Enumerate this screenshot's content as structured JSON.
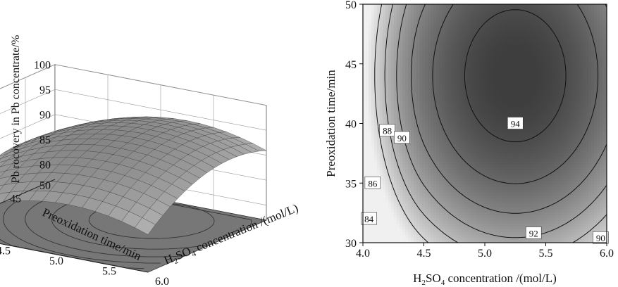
{
  "chart_data": [
    {
      "type": "surface",
      "title": "",
      "zlabel": "Pb rocovery in Pb concentrate/%",
      "ylabel": "Preoxidation time/min",
      "xlabel_parts": [
        "H",
        "2",
        "SO",
        "4",
        " concentration /(mol/L)"
      ],
      "x_ticks": [
        "4.0",
        "4.5",
        "5.0",
        "5.5",
        "6.0"
      ],
      "y_ticks": [
        "50",
        "45",
        "40",
        "35",
        "30"
      ],
      "z_ticks": [
        "100",
        "95",
        "90",
        "85",
        "80"
      ],
      "xlim": [
        4.0,
        6.0
      ],
      "ylim": [
        30,
        50
      ],
      "zlim": [
        77,
        100
      ],
      "grid": true,
      "surface_peak": {
        "x": 5.25,
        "y": 44,
        "z": 95.3
      },
      "colors": {
        "surface_light": "#f2f2f2",
        "surface_dark": "#7a7a7a",
        "floor": "#777777",
        "mesh": "#3a3a3a"
      }
    },
    {
      "type": "contour",
      "title": "",
      "xlabel_parts": [
        "H",
        "2",
        "SO",
        "4",
        " concentration /(mol/L)"
      ],
      "ylabel": "Preoxidation time/min",
      "x_ticks": [
        "4.0",
        "4.5",
        "5.0",
        "5.5",
        "6.0"
      ],
      "y_ticks": [
        "30",
        "35",
        "40",
        "45",
        "50"
      ],
      "xlim": [
        4.0,
        6.0
      ],
      "ylim": [
        30,
        50
      ],
      "contour_levels": [
        84,
        86,
        88,
        90,
        92,
        94
      ],
      "contour_labels": [
        {
          "text": "84",
          "x": 4.05,
          "y": 32.0
        },
        {
          "text": "86",
          "x": 4.08,
          "y": 35.0
        },
        {
          "text": "88",
          "x": 4.2,
          "y": 39.4
        },
        {
          "text": "90",
          "x": 4.32,
          "y": 38.8
        },
        {
          "text": "94",
          "x": 5.25,
          "y": 40.0
        },
        {
          "text": "92",
          "x": 5.4,
          "y": 30.8
        },
        {
          "text": "90",
          "x": 5.95,
          "y": 30.4
        }
      ],
      "colors": {
        "low": "#f0f0f0",
        "high": "#3e3e3e",
        "line": "#111111"
      }
    }
  ]
}
